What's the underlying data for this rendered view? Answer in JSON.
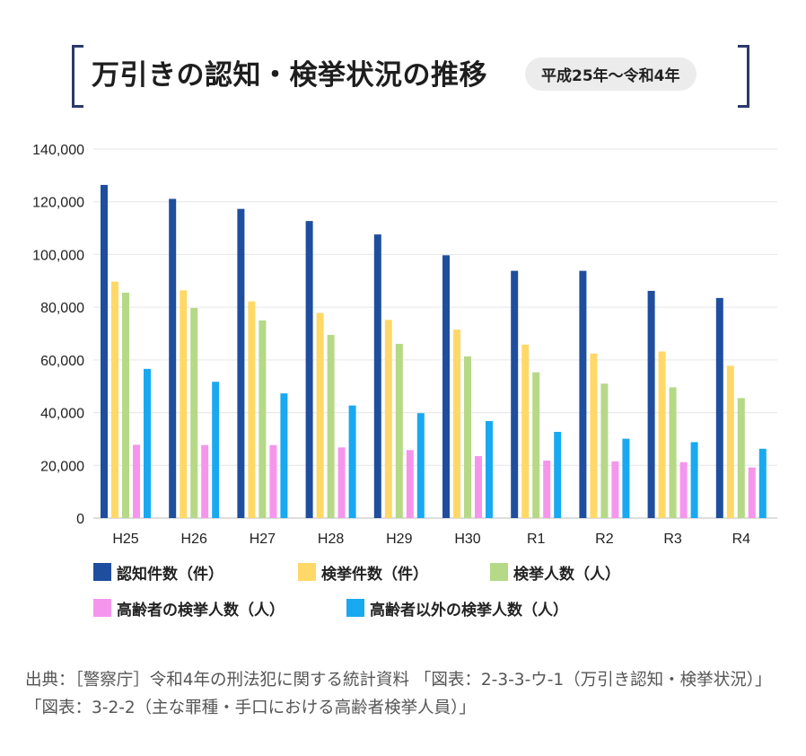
{
  "title": {
    "main": "万引きの認知・検挙状況の推移",
    "badge": "平成25年〜令和4年"
  },
  "source": {
    "text": "出典：［警察庁］令和4年の刑法犯に関する統計資料 「図表：2-3-3-ウ-1（万引き認知・検挙状況）」 「図表：3-2-2（主な罪種・手口における高齢者検挙人員）」"
  },
  "chart_data": {
    "type": "bar",
    "categories": [
      "H25",
      "H26",
      "H27",
      "H28",
      "H29",
      "H30",
      "R1",
      "R2",
      "R3",
      "R4"
    ],
    "ylim": [
      0,
      140000
    ],
    "yticks": [
      "0",
      "20,000",
      "40,000",
      "60,000",
      "80,000",
      "100,000",
      "120,000",
      "140,000"
    ],
    "grid": true,
    "legend_position": "bottom",
    "series": [
      {
        "name": "認知件数（件）",
        "color": "#1f4e9e",
        "values": [
          126400,
          121100,
          117300,
          112700,
          107600,
          99700,
          93800,
          93800,
          86200,
          83500
        ]
      },
      {
        "name": "検挙件数（件）",
        "color": "#ffd867",
        "values": [
          89700,
          86400,
          82200,
          77800,
          75200,
          71500,
          65800,
          62400,
          63200,
          57800
        ]
      },
      {
        "name": "検挙人数（人）",
        "color": "#b5d987",
        "values": [
          85500,
          79700,
          75000,
          69500,
          66100,
          61300,
          55300,
          51000,
          49600,
          45500
        ]
      },
      {
        "name": "高齢者の検挙人数（人）",
        "color": "#f596ec",
        "values": [
          27800,
          27700,
          27700,
          26800,
          25800,
          23500,
          21800,
          21500,
          21200,
          19200
        ]
      },
      {
        "name": "高齢者以外の検挙人数（人）",
        "color": "#19a9f1",
        "values": [
          56600,
          51700,
          47300,
          42700,
          39800,
          36800,
          32700,
          30100,
          28800,
          26300
        ]
      }
    ]
  }
}
